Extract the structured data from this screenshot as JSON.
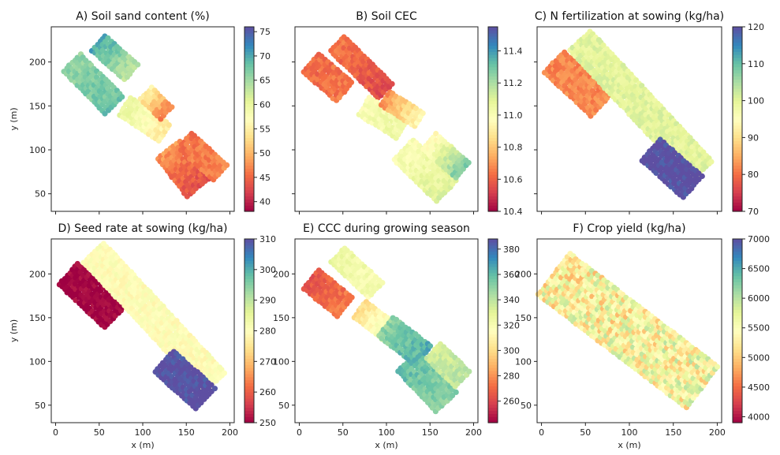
{
  "chart_data": [
    {
      "type": "heatmap",
      "id": "A",
      "title": "A) Soil sand content (%)",
      "xlabel": "",
      "ylabel": "y (m)",
      "xticks": [],
      "yticks": [
        "50",
        "100",
        "150",
        "200"
      ],
      "colorbar": {
        "min": 38,
        "max": 76,
        "ticks": [
          "40",
          "45",
          "50",
          "55",
          "60",
          "65",
          "70",
          "75"
        ],
        "scheme": "Spectral"
      },
      "xlim": [
        -5,
        205
      ],
      "ylim": [
        30,
        240
      ],
      "strips": [
        {
          "x0": 20,
          "y0": 200,
          "x1": 70,
          "y1": 150,
          "w": 30,
          "start": 66,
          "end": 68
        },
        {
          "x0": 50,
          "y0": 222,
          "x1": 90,
          "y1": 186,
          "w": 24,
          "start": 70,
          "end": 63
        },
        {
          "x0": 80,
          "y0": 150,
          "x1": 125,
          "y1": 120,
          "w": 24,
          "start": 60,
          "end": 55
        },
        {
          "x0": 105,
          "y0": 165,
          "x1": 130,
          "y1": 140,
          "w": 20,
          "start": 55,
          "end": 46
        },
        {
          "x0": 130,
          "y0": 100,
          "x1": 165,
          "y1": 55,
          "w": 32,
          "start": 48,
          "end": 43
        },
        {
          "x0": 150,
          "y0": 112,
          "x1": 190,
          "y1": 75,
          "w": 26,
          "start": 46,
          "end": 47
        }
      ]
    },
    {
      "type": "heatmap",
      "id": "B",
      "title": "B) Soil CEC",
      "xlabel": "",
      "ylabel": "",
      "xticks": [],
      "yticks": [],
      "colorbar": {
        "min": 10.4,
        "max": 11.55,
        "ticks": [
          "10.4",
          "10.6",
          "10.8",
          "11.0",
          "11.2",
          "11.4"
        ],
        "scheme": "Spectral"
      },
      "xlim": [
        -5,
        205
      ],
      "ylim": [
        30,
        240
      ],
      "strips": [
        {
          "x0": 15,
          "y0": 200,
          "x1": 55,
          "y1": 165,
          "w": 30,
          "start": 10.62,
          "end": 10.65
        },
        {
          "x0": 45,
          "y0": 222,
          "x1": 100,
          "y1": 168,
          "w": 26,
          "start": 10.65,
          "end": 10.55
        },
        {
          "x0": 75,
          "y0": 150,
          "x1": 120,
          "y1": 122,
          "w": 24,
          "start": 11.0,
          "end": 11.05
        },
        {
          "x0": 100,
          "y0": 160,
          "x1": 140,
          "y1": 135,
          "w": 22,
          "start": 10.7,
          "end": 10.95
        },
        {
          "x0": 120,
          "y0": 100,
          "x1": 170,
          "y1": 52,
          "w": 32,
          "start": 11.0,
          "end": 11.1
        },
        {
          "x0": 150,
          "y0": 110,
          "x1": 190,
          "y1": 75,
          "w": 24,
          "start": 10.95,
          "end": 11.3
        }
      ]
    },
    {
      "type": "heatmap",
      "id": "C",
      "title": "C) N fertilization at sowing (kg/ha)",
      "xlabel": "",
      "ylabel": "",
      "xticks": [],
      "yticks": [],
      "colorbar": {
        "min": 70,
        "max": 120,
        "ticks": [
          "70",
          "80",
          "90",
          "100",
          "110",
          "120"
        ],
        "scheme": "Spectral"
      },
      "xlim": [
        -5,
        205
      ],
      "ylim": [
        30,
        240
      ],
      "strips": [
        {
          "x0": 15,
          "y0": 200,
          "x1": 70,
          "y1": 148,
          "w": 32,
          "start": 82,
          "end": 82
        },
        {
          "x0": 45,
          "y0": 225,
          "x1": 185,
          "y1": 75,
          "w": 34,
          "start": 100,
          "end": 100
        },
        {
          "x0": 125,
          "y0": 100,
          "x1": 172,
          "y1": 58,
          "w": 32,
          "start": 120,
          "end": 120
        }
      ]
    },
    {
      "type": "heatmap",
      "id": "D",
      "title": "D) Seed rate at sowing (kg/ha)",
      "xlabel": "x (m)",
      "ylabel": "y (m)",
      "xticks": [
        "0",
        "50",
        "100",
        "150",
        "200"
      ],
      "yticks": [
        "50",
        "100",
        "150",
        "200"
      ],
      "colorbar": {
        "min": 250,
        "max": 310,
        "ticks": [
          "250",
          "260",
          "270",
          "280",
          "290",
          "300",
          "310"
        ],
        "scheme": "Spectral"
      },
      "xlim": [
        -5,
        205
      ],
      "ylim": [
        30,
        240
      ],
      "strips": [
        {
          "x0": 15,
          "y0": 200,
          "x1": 70,
          "y1": 148,
          "w": 32,
          "start": 250,
          "end": 250
        },
        {
          "x0": 45,
          "y0": 225,
          "x1": 185,
          "y1": 75,
          "w": 34,
          "start": 280,
          "end": 280
        },
        {
          "x0": 125,
          "y0": 100,
          "x1": 172,
          "y1": 58,
          "w": 32,
          "start": 310,
          "end": 310
        }
      ]
    },
    {
      "type": "heatmap",
      "id": "E",
      "title": "E) CCC during growing season",
      "xlabel": "x (m)",
      "ylabel": "",
      "xticks": [
        "0",
        "50",
        "100",
        "150",
        "200"
      ],
      "yticks": [
        "50",
        "100",
        "150",
        "200"
      ],
      "colorbar": {
        "min": 243,
        "max": 388,
        "ticks": [
          "260",
          "280",
          "300",
          "320",
          "340",
          "360",
          "380"
        ],
        "scheme": "Spectral"
      },
      "xlim": [
        -5,
        205
      ],
      "ylim": [
        30,
        240
      ],
      "strips": [
        {
          "x0": 15,
          "y0": 195,
          "x1": 55,
          "y1": 162,
          "w": 30,
          "start": 265,
          "end": 275
        },
        {
          "x0": 45,
          "y0": 222,
          "x1": 90,
          "y1": 180,
          "w": 24,
          "start": 325,
          "end": 320
        },
        {
          "x0": 70,
          "y0": 160,
          "x1": 110,
          "y1": 130,
          "w": 24,
          "start": 300,
          "end": 330
        },
        {
          "x0": 100,
          "y0": 140,
          "x1": 145,
          "y1": 105,
          "w": 28,
          "start": 350,
          "end": 365
        },
        {
          "x0": 125,
          "y0": 100,
          "x1": 170,
          "y1": 52,
          "w": 32,
          "start": 360,
          "end": 350
        },
        {
          "x0": 155,
          "y0": 112,
          "x1": 190,
          "y1": 78,
          "w": 24,
          "start": 335,
          "end": 340
        }
      ]
    },
    {
      "type": "heatmap",
      "id": "F",
      "title": "F) Crop yield (kg/ha)",
      "xlabel": "x (m)",
      "ylabel": "",
      "xticks": [
        "0",
        "50",
        "100",
        "150",
        "200"
      ],
      "yticks": [
        "50",
        "100",
        "150",
        "200"
      ],
      "colorbar": {
        "min": 3900,
        "max": 7000,
        "ticks": [
          "4000",
          "4500",
          "5000",
          "5500",
          "6000",
          "6500",
          "7000"
        ],
        "scheme": "Spectral"
      },
      "xlim": [
        -5,
        205
      ],
      "ylim": [
        30,
        240
      ],
      "strips": [
        {
          "x0": 15,
          "y0": 200,
          "x1": 185,
          "y1": 70,
          "w": 60,
          "start": 5400,
          "end": 5500
        }
      ]
    }
  ]
}
